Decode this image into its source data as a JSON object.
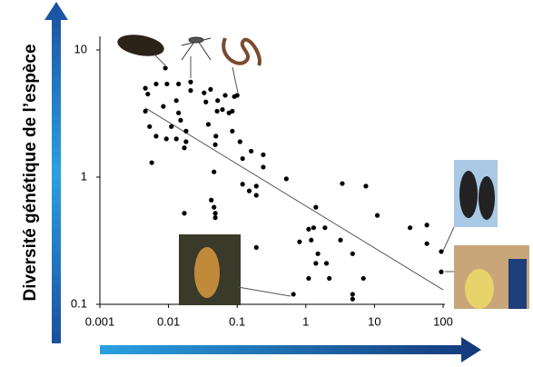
{
  "chart_data": {
    "type": "scatter",
    "y_axis_label": "Diversité génétique de l’espèce",
    "x": [
      0.0046,
      0.005,
      0.0066,
      0.0046,
      0.0084,
      0.0095,
      0.009,
      0.013,
      0.014,
      0.0053,
      0.0066,
      0.0093,
      0.011,
      0.015,
      0.018,
      0.018,
      0.017,
      0.013,
      0.0057,
      0.014,
      0.021,
      0.021,
      0.033,
      0.035,
      0.041,
      0.051,
      0.038,
      0.049,
      0.048,
      0.052,
      0.061,
      0.067,
      0.076,
      0.085,
      0.091,
      0.1,
      0.085,
      0.11,
      0.16,
      0.12,
      0.24,
      0.24,
      0.046,
      0.042,
      0.046,
      0.048,
      0.048,
      0.017,
      0.12,
      0.15,
      0.19,
      0.19,
      0.52,
      0.19,
      0.81,
      1.4,
      1.3,
      1.1,
      1.2,
      1.9,
      1.5,
      1.4,
      2.0,
      2.2,
      3.4,
      1.1,
      7.5,
      3.2,
      4.8,
      6.9,
      11,
      33,
      58,
      58,
      94,
      94,
      4.8,
      4.8,
      0.66
    ],
    "values": [
      5.0,
      4.5,
      5.4,
      3.3,
      3.6,
      5.4,
      7.2,
      4.0,
      3.2,
      2.5,
      2.1,
      2.0,
      2.5,
      2.8,
      2.3,
      1.9,
      1.7,
      2.0,
      1.3,
      5.4,
      5.6,
      4.8,
      4.6,
      3.9,
      4.9,
      3.3,
      2.6,
      2.1,
      1.8,
      4.0,
      3.4,
      4.4,
      3.2,
      3.3,
      4.3,
      4.4,
      2.3,
      1.9,
      1.6,
      1.4,
      1.5,
      1.2,
      1.1,
      0.66,
      0.58,
      0.52,
      0.48,
      0.52,
      0.88,
      0.78,
      0.85,
      0.72,
      0.97,
      0.28,
      0.31,
      0.58,
      0.4,
      0.39,
      0.32,
      0.4,
      0.25,
      0.21,
      0.21,
      0.16,
      0.89,
      0.16,
      0.85,
      0.32,
      0.25,
      0.16,
      0.5,
      0.4,
      0.42,
      0.3,
      0.26,
      0.18,
      0.12,
      0.11,
      0.12
    ],
    "color": "#000000",
    "trendline": {
      "x": [
        0.0046,
        100
      ],
      "y": [
        3.5,
        0.13
      ],
      "color": "#555555"
    },
    "xlim": [
      0.001,
      100
    ],
    "ylim": [
      0.1,
      10
    ],
    "xticks": [
      0.001,
      0.01,
      0.1,
      1,
      10,
      100
    ],
    "yticks": [
      0.1,
      1,
      10
    ],
    "xscale": "log",
    "yscale": "log"
  }
}
